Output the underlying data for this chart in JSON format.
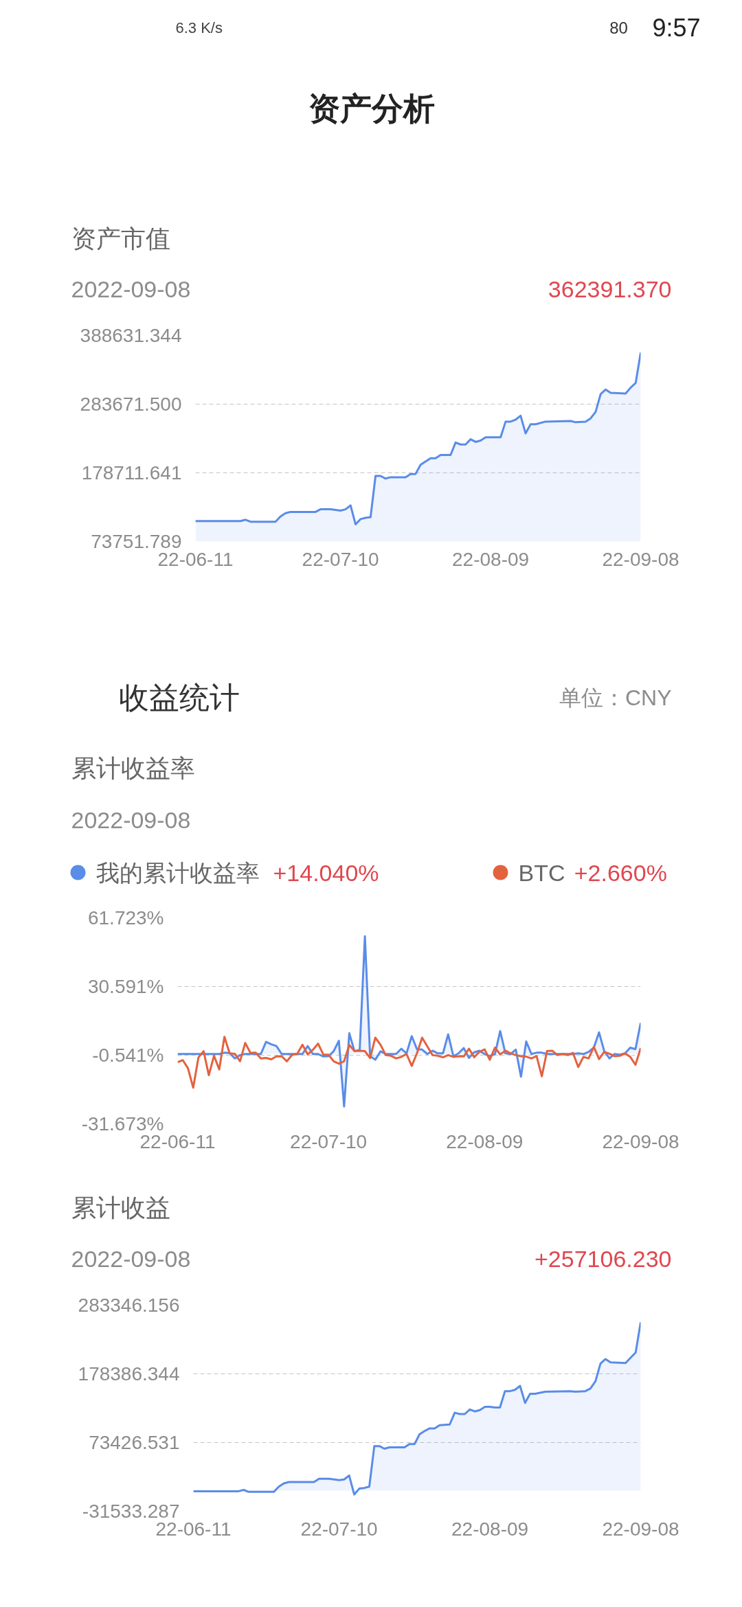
{
  "chart_data": [
    {
      "type": "area",
      "title": "资产市值",
      "subtitle": "2022-09-08",
      "annotations": [
        "9:57",
        "80",
        "6.3 K/s",
        "资产分析",
        "362391.370"
      ],
      "x": [
        "2022-06-11",
        "2022-06-20",
        "2022-06-21",
        "2022-06-22",
        "2022-06-27",
        "2022-06-28",
        "2022-06-29",
        "2022-06-30",
        "2022-07-05",
        "2022-07-06",
        "2022-07-08",
        "2022-07-10",
        "2022-07-11",
        "2022-07-12",
        "2022-07-13",
        "2022-07-14",
        "2022-07-15",
        "2022-07-16",
        "2022-07-17",
        "2022-07-18",
        "2022-07-19",
        "2022-07-20",
        "2022-07-23",
        "2022-07-24",
        "2022-07-25",
        "2022-07-26",
        "2022-07-27",
        "2022-07-28",
        "2022-07-29",
        "2022-07-30",
        "2022-08-01",
        "2022-08-02",
        "2022-08-03",
        "2022-08-04",
        "2022-08-05",
        "2022-08-06",
        "2022-08-07",
        "2022-08-08",
        "2022-08-09",
        "2022-08-10",
        "2022-08-11",
        "2022-08-12",
        "2022-08-13",
        "2022-08-14",
        "2022-08-15",
        "2022-08-16",
        "2022-08-17",
        "2022-08-18",
        "2022-08-20",
        "2022-08-25",
        "2022-08-26",
        "2022-08-28",
        "2022-08-29",
        "2022-08-30",
        "2022-08-31",
        "2022-09-01",
        "2022-09-02",
        "2022-09-05",
        "2022-09-06",
        "2022-09-07",
        "2022-09-08"
      ],
      "values": [
        105000,
        105000,
        107000,
        104000,
        104000,
        112000,
        117000,
        119000,
        119000,
        123000,
        123000,
        121000,
        123000,
        129000,
        100000,
        108000,
        110000,
        111000,
        174000,
        174000,
        170000,
        172000,
        172000,
        177000,
        177000,
        191000,
        196000,
        201000,
        201000,
        206000,
        206000,
        225000,
        222000,
        222000,
        230000,
        226000,
        228000,
        233000,
        233000,
        233000,
        233000,
        257000,
        257000,
        260000,
        266000,
        239000,
        253000,
        253000,
        257000,
        258000,
        256000,
        257000,
        262000,
        272000,
        299000,
        306000,
        301000,
        300000,
        309000,
        316000,
        362391.37
      ],
      "color": "#5a8ce8",
      "xlim": [
        "2022-06-11",
        "2022-09-08"
      ],
      "xticks": [
        {
          "value": "2022-06-11",
          "label": "22-06-11"
        },
        {
          "value": "2022-07-10",
          "label": "22-07-10"
        },
        {
          "value": "2022-08-09",
          "label": "22-08-09"
        },
        {
          "value": "2022-09-08",
          "label": "22-09-08"
        }
      ],
      "ylim": [
        73751.789,
        388631.344
      ],
      "yticks": [
        73751.789,
        178711.641,
        {
          "value": 283671.5,
          "label": "283671.500"
        },
        388631.344
      ],
      "grid": "y"
    },
    {
      "type": "line",
      "title": "累计收益率",
      "subtitle": "2022-09-08",
      "annotations": [
        "收益统计",
        "单位：CNY",
        "+14.040%",
        "+2.660%"
      ],
      "x": [
        "2022-06-11",
        "2022-06-12",
        "2022-06-13",
        "2022-06-14",
        "2022-06-15",
        "2022-06-16",
        "2022-06-17",
        "2022-06-18",
        "2022-06-19",
        "2022-06-20",
        "2022-06-21",
        "2022-06-22",
        "2022-06-23",
        "2022-06-24",
        "2022-06-25",
        "2022-06-26",
        "2022-06-27",
        "2022-06-28",
        "2022-06-29",
        "2022-06-30",
        "2022-07-01",
        "2022-07-02",
        "2022-07-03",
        "2022-07-04",
        "2022-07-05",
        "2022-07-06",
        "2022-07-07",
        "2022-07-08",
        "2022-07-09",
        "2022-07-10",
        "2022-07-11",
        "2022-07-12",
        "2022-07-13",
        "2022-07-14",
        "2022-07-15",
        "2022-07-16",
        "2022-07-17",
        "2022-07-18",
        "2022-07-19",
        "2022-07-20",
        "2022-07-21",
        "2022-07-22",
        "2022-07-23",
        "2022-07-24",
        "2022-07-25",
        "2022-07-26",
        "2022-07-27",
        "2022-07-28",
        "2022-07-29",
        "2022-07-30",
        "2022-07-31",
        "2022-08-01",
        "2022-08-02",
        "2022-08-03",
        "2022-08-04",
        "2022-08-05",
        "2022-08-06",
        "2022-08-07",
        "2022-08-08",
        "2022-08-09",
        "2022-08-10",
        "2022-08-11",
        "2022-08-12",
        "2022-08-13",
        "2022-08-14",
        "2022-08-15",
        "2022-08-16",
        "2022-08-17",
        "2022-08-18",
        "2022-08-19",
        "2022-08-20",
        "2022-08-21",
        "2022-08-22",
        "2022-08-23",
        "2022-08-24",
        "2022-08-25",
        "2022-08-26",
        "2022-08-27",
        "2022-08-28",
        "2022-08-29",
        "2022-08-30",
        "2022-08-31",
        "2022-09-01",
        "2022-09-02",
        "2022-09-03",
        "2022-09-04",
        "2022-09-05",
        "2022-09-06",
        "2022-09-07",
        "2022-09-08"
      ],
      "series": [
        {
          "name": "我的累计收益率",
          "type": "area",
          "color": "#5a8ce8",
          "values": [
            0,
            0,
            0,
            0,
            0,
            0,
            0,
            0,
            0,
            0.6,
            0.4,
            -2.0,
            -0.5,
            0,
            0,
            0,
            0,
            5.5,
            4.4,
            3.6,
            0,
            0,
            0,
            0,
            0,
            3.6,
            0,
            0,
            -1.1,
            -1.0,
            1.3,
            6.0,
            -23.8,
            9.4,
            1.3,
            1.9,
            53.4,
            -1.0,
            -2.6,
            1.2,
            0,
            0,
            0,
            2.4,
            0.3,
            8.1,
            2.2,
            2.0,
            0,
            1.5,
            0.3,
            0.3,
            8.9,
            -1.0,
            0.3,
            2.7,
            -1.8,
            0.8,
            1.5,
            0,
            -1.0,
            0,
            10.4,
            0.3,
            0,
            2.0,
            -10.3,
            5.7,
            0,
            0.6,
            0.6,
            0,
            0,
            0,
            0,
            0,
            0,
            0.3,
            0,
            1.0,
            2.9,
            9.8,
            1.3,
            -2.0,
            0,
            -0.3,
            0.3,
            2.9,
            2.2,
            14.04
          ]
        },
        {
          "name": "BTC",
          "color": "#e3623e",
          "values": [
            -3.7,
            -2.8,
            -6.5,
            -15.3,
            -1.6,
            1.3,
            -9.6,
            -0.8,
            -7.0,
            7.8,
            0.3,
            0.1,
            -3.3,
            5.0,
            0.5,
            0.6,
            -2.0,
            -1.8,
            -2.4,
            -1.1,
            -1.0,
            -3.3,
            -0.4,
            0.1,
            4.2,
            -0.2,
            1.9,
            4.7,
            -0.2,
            -0.3,
            -3.3,
            -4.4,
            -3.3,
            4.1,
            1.3,
            1.5,
            1.3,
            -1.8,
            7.4,
            4.2,
            -0.5,
            -0.8,
            -2.0,
            -1.3,
            0,
            -5.4,
            0.3,
            7.4,
            3.4,
            -0.5,
            -0.8,
            -1.5,
            -0.5,
            -1.3,
            -1.0,
            -1.1,
            2.4,
            -1.5,
            1.0,
            2.1,
            -2.6,
            2.9,
            -0.2,
            1.5,
            0.3,
            -0.5,
            -1.0,
            -1.2,
            -2.0,
            -1.0,
            -10.1,
            1.3,
            1.5,
            -0.5,
            0,
            -0.5,
            0.5,
            -5.9,
            -1.3,
            -2.0,
            3.2,
            -2.3,
            1.0,
            0.1,
            -1.0,
            -0.8,
            0.3,
            -1.3,
            -4.9,
            2.66
          ]
        }
      ],
      "xlim": [
        "2022-06-11",
        "2022-09-08"
      ],
      "xticks": [
        {
          "value": "2022-06-11",
          "label": "22-06-11"
        },
        {
          "value": "2022-07-10",
          "label": "22-07-10"
        },
        {
          "value": "2022-08-09",
          "label": "22-08-09"
        },
        {
          "value": "2022-09-08",
          "label": "22-09-08"
        }
      ],
      "ylim": [
        -31.673,
        61.723
      ],
      "yticks": [
        {
          "value": -31.673,
          "label": "-31.673%"
        },
        {
          "value": -0.541,
          "label": "-0.541%"
        },
        {
          "value": 30.591,
          "label": "30.591%"
        },
        {
          "value": 61.723,
          "label": "61.723%"
        }
      ],
      "grid": "y",
      "legend": "top"
    },
    {
      "type": "area",
      "title": "累计收益",
      "subtitle": "2022-09-08",
      "annotations": [
        "+257106.230"
      ],
      "x": [
        "2022-06-11",
        "2022-06-20",
        "2022-06-21",
        "2022-06-22",
        "2022-06-27",
        "2022-06-28",
        "2022-06-29",
        "2022-06-30",
        "2022-07-05",
        "2022-07-06",
        "2022-07-08",
        "2022-07-10",
        "2022-07-11",
        "2022-07-12",
        "2022-07-13",
        "2022-07-14",
        "2022-07-15",
        "2022-07-16",
        "2022-07-17",
        "2022-07-18",
        "2022-07-19",
        "2022-07-20",
        "2022-07-23",
        "2022-07-24",
        "2022-07-25",
        "2022-07-26",
        "2022-07-27",
        "2022-07-28",
        "2022-07-29",
        "2022-07-30",
        "2022-08-01",
        "2022-08-02",
        "2022-08-03",
        "2022-08-04",
        "2022-08-05",
        "2022-08-06",
        "2022-08-07",
        "2022-08-08",
        "2022-08-09",
        "2022-08-10",
        "2022-08-11",
        "2022-08-12",
        "2022-08-13",
        "2022-08-14",
        "2022-08-15",
        "2022-08-16",
        "2022-08-17",
        "2022-08-18",
        "2022-08-20",
        "2022-08-25",
        "2022-08-26",
        "2022-08-28",
        "2022-08-29",
        "2022-08-30",
        "2022-08-31",
        "2022-09-01",
        "2022-09-02",
        "2022-09-05",
        "2022-09-06",
        "2022-09-07",
        "2022-09-08"
      ],
      "values": [
        -1000,
        -1000,
        1000,
        -2000,
        -2000,
        6000,
        11000,
        13000,
        13000,
        18000,
        18000,
        16000,
        17000,
        23000,
        -6000,
        3000,
        4000,
        6000,
        68000,
        68000,
        64000,
        66000,
        66000,
        71000,
        71000,
        86000,
        91000,
        95000,
        95000,
        100000,
        101000,
        119000,
        117000,
        117000,
        124000,
        121000,
        123000,
        128000,
        128000,
        127000,
        127000,
        152000,
        152000,
        154000,
        160000,
        134000,
        148000,
        148000,
        151000,
        152000,
        151000,
        152000,
        156000,
        167000,
        194000,
        201000,
        196000,
        195000,
        203000,
        211000,
        257106.23
      ],
      "color": "#5a8ce8",
      "xlim": [
        "2022-06-11",
        "2022-09-08"
      ],
      "xticks": [
        {
          "value": "2022-06-11",
          "label": "22-06-11"
        },
        {
          "value": "2022-07-10",
          "label": "22-07-10"
        },
        {
          "value": "2022-08-09",
          "label": "22-08-09"
        },
        {
          "value": "2022-09-08",
          "label": "22-09-08"
        }
      ],
      "ylim": [
        -31533.287,
        283346.156
      ],
      "yticks": [
        -31533.287,
        73426.531,
        178386.344,
        283346.156
      ],
      "grid": "y"
    }
  ]
}
